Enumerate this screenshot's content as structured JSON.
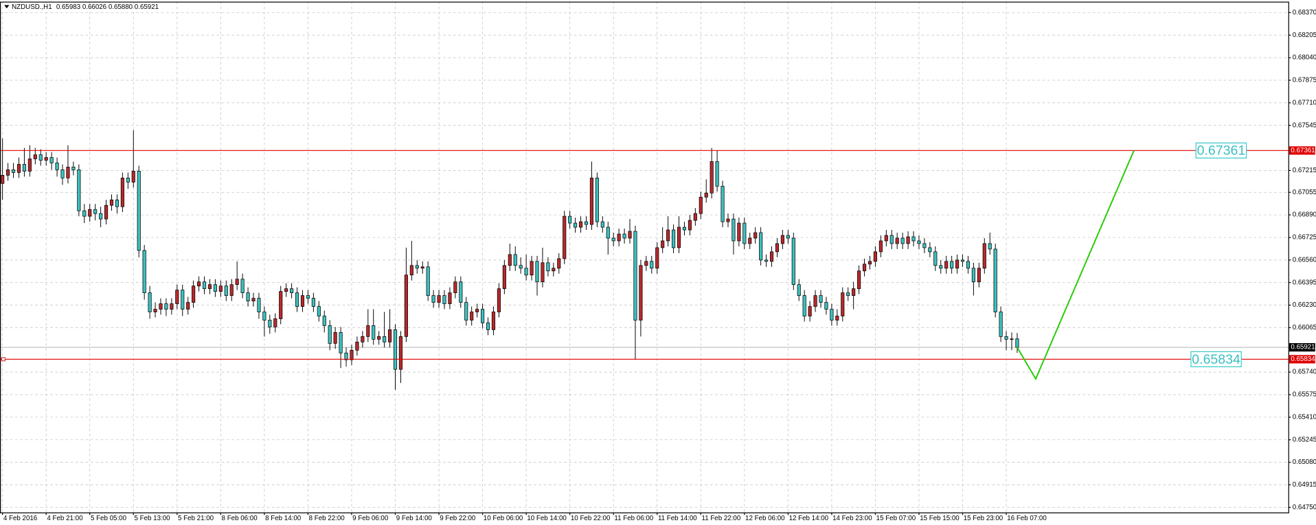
{
  "chart_data": {
    "type": "candlestick",
    "title": "NZDUSD.,H1",
    "quote": "0.65983 0.66026 0.65880 0.65921",
    "up_color": "#b8292c",
    "down_color": "#3cc0bf",
    "wick_color": "#000000",
    "grid": true,
    "xlim": [
      -0.46,
      235.7
    ],
    "ylim": [
      0.64713,
      0.6845
    ],
    "yticks": [
      {
        "value": 0.6837,
        "label": "0.68370"
      },
      {
        "value": 0.68205,
        "label": "0.68205"
      },
      {
        "value": 0.6804,
        "label": "0.68040"
      },
      {
        "value": 0.67875,
        "label": "0.67875"
      },
      {
        "value": 0.6771,
        "label": "0.67710"
      },
      {
        "value": 0.67545,
        "label": "0.67545"
      },
      {
        "value": 0.67215,
        "label": "0.67215"
      },
      {
        "value": 0.67055,
        "label": "0.67055"
      },
      {
        "value": 0.6689,
        "label": "0.66890"
      },
      {
        "value": 0.66725,
        "label": "0.66725"
      },
      {
        "value": 0.6656,
        "label": "0.66560"
      },
      {
        "value": 0.66395,
        "label": "0.66395"
      },
      {
        "value": 0.6623,
        "label": "0.66230"
      },
      {
        "value": 0.66065,
        "label": "0.66065"
      },
      {
        "value": 0.6574,
        "label": "0.65740"
      },
      {
        "value": 0.65575,
        "label": "0.65575"
      },
      {
        "value": 0.6541,
        "label": "0.65410"
      },
      {
        "value": 0.65245,
        "label": "0.65245"
      },
      {
        "value": 0.6508,
        "label": "0.65080"
      },
      {
        "value": 0.64915,
        "label": "0.64915"
      },
      {
        "value": 0.6475,
        "label": "0.64750"
      }
    ],
    "xticks": [
      {
        "value": 0,
        "label": "4 Feb 2016"
      },
      {
        "value": 8,
        "label": "4 Feb 21:00"
      },
      {
        "value": 16,
        "label": "5 Feb 05:00"
      },
      {
        "value": 24,
        "label": "5 Feb 13:00"
      },
      {
        "value": 32,
        "label": "5 Feb 21:00"
      },
      {
        "value": 40,
        "label": "8 Feb 06:00"
      },
      {
        "value": 48,
        "label": "8 Feb 14:00"
      },
      {
        "value": 56,
        "label": "8 Feb 22:00"
      },
      {
        "value": 64,
        "label": "9 Feb 06:00"
      },
      {
        "value": 72,
        "label": "9 Feb 14:00"
      },
      {
        "value": 80,
        "label": "9 Feb 22:00"
      },
      {
        "value": 88,
        "label": "10 Feb 06:00"
      },
      {
        "value": 96,
        "label": "10 Feb 14:00"
      },
      {
        "value": 104,
        "label": "10 Feb 22:00"
      },
      {
        "value": 112,
        "label": "11 Feb 06:00"
      },
      {
        "value": 120,
        "label": "11 Feb 14:00"
      },
      {
        "value": 128,
        "label": "11 Feb 22:00"
      },
      {
        "value": 136,
        "label": "12 Feb 06:00"
      },
      {
        "value": 144,
        "label": "12 Feb 14:00"
      },
      {
        "value": 152,
        "label": "14 Feb 23:00"
      },
      {
        "value": 160,
        "label": "15 Feb 07:00"
      },
      {
        "value": 168,
        "label": "15 Feb 15:00"
      },
      {
        "value": 176,
        "label": "15 Feb 23:00"
      },
      {
        "value": 184,
        "label": "16 Feb 07:00"
      }
    ],
    "levels": [
      {
        "value": 0.67361,
        "color": "#e00000"
      },
      {
        "value": 0.65834,
        "color": "#e00000"
      }
    ],
    "bid": {
      "value": 0.65921,
      "color": "#b0b0b0"
    },
    "projection": {
      "color": "#22cc00",
      "x": [
        186,
        189.4,
        207.4
      ],
      "values": [
        0.65921,
        0.6569,
        0.67361
      ]
    },
    "candles": [
      [
        0.6712,
        0.6745,
        0.67,
        0.6718
      ],
      [
        0.6718,
        0.6727,
        0.6714,
        0.6722
      ],
      [
        0.6722,
        0.6727,
        0.6716,
        0.672
      ],
      [
        0.672,
        0.6731,
        0.6716,
        0.6726
      ],
      [
        0.6726,
        0.6738,
        0.6717,
        0.6721
      ],
      [
        0.6721,
        0.674,
        0.6717,
        0.673
      ],
      [
        0.673,
        0.6738,
        0.6726,
        0.6733
      ],
      [
        0.6733,
        0.6737,
        0.6725,
        0.6729
      ],
      [
        0.6729,
        0.6735,
        0.6725,
        0.6731
      ],
      [
        0.6731,
        0.6735,
        0.6722,
        0.6727
      ],
      [
        0.6727,
        0.6731,
        0.6717,
        0.6722
      ],
      [
        0.6722,
        0.6726,
        0.6711,
        0.6716
      ],
      [
        0.6716,
        0.674,
        0.6712,
        0.6724
      ],
      [
        0.6724,
        0.6728,
        0.6718,
        0.6722
      ],
      [
        0.6722,
        0.6726,
        0.6688,
        0.6692
      ],
      [
        0.6692,
        0.6697,
        0.6683,
        0.6688
      ],
      [
        0.6688,
        0.6697,
        0.6684,
        0.6693
      ],
      [
        0.6693,
        0.6697,
        0.6685,
        0.669
      ],
      [
        0.669,
        0.6695,
        0.668,
        0.6686
      ],
      [
        0.6686,
        0.67,
        0.6682,
        0.6696
      ],
      [
        0.6696,
        0.6704,
        0.6692,
        0.67
      ],
      [
        0.67,
        0.6704,
        0.669,
        0.6695
      ],
      [
        0.6695,
        0.672,
        0.6691,
        0.6716
      ],
      [
        0.6716,
        0.672,
        0.6708,
        0.6713
      ],
      [
        0.6713,
        0.6751,
        0.6709,
        0.6721
      ],
      [
        0.6721,
        0.6725,
        0.6658,
        0.6663
      ],
      [
        0.6663,
        0.6667,
        0.6627,
        0.6632
      ],
      [
        0.6632,
        0.6637,
        0.6613,
        0.6618
      ],
      [
        0.6618,
        0.6625,
        0.6614,
        0.662
      ],
      [
        0.662,
        0.6628,
        0.6616,
        0.6624
      ],
      [
        0.6624,
        0.6628,
        0.6615,
        0.662
      ],
      [
        0.662,
        0.6628,
        0.6616,
        0.6624
      ],
      [
        0.6624,
        0.6638,
        0.662,
        0.6634
      ],
      [
        0.6634,
        0.6638,
        0.6615,
        0.662
      ],
      [
        0.662,
        0.6629,
        0.6616,
        0.6625
      ],
      [
        0.6625,
        0.6641,
        0.6621,
        0.6637
      ],
      [
        0.6637,
        0.6644,
        0.6633,
        0.664
      ],
      [
        0.664,
        0.6644,
        0.6631,
        0.6635
      ],
      [
        0.6635,
        0.6642,
        0.6631,
        0.6638
      ],
      [
        0.6638,
        0.6642,
        0.6629,
        0.6633
      ],
      [
        0.6633,
        0.6641,
        0.6629,
        0.6637
      ],
      [
        0.6637,
        0.6641,
        0.6626,
        0.663
      ],
      [
        0.663,
        0.6642,
        0.6626,
        0.6638
      ],
      [
        0.6638,
        0.6655,
        0.6634,
        0.6642
      ],
      [
        0.6642,
        0.6646,
        0.6628,
        0.6632
      ],
      [
        0.6632,
        0.6636,
        0.6622,
        0.6626
      ],
      [
        0.6626,
        0.6632,
        0.6622,
        0.6628
      ],
      [
        0.6628,
        0.6632,
        0.6613,
        0.6618
      ],
      [
        0.6618,
        0.6622,
        0.66,
        0.6612
      ],
      [
        0.6612,
        0.6616,
        0.6602,
        0.6607
      ],
      [
        0.6607,
        0.6617,
        0.6603,
        0.6613
      ],
      [
        0.6613,
        0.6637,
        0.6609,
        0.6633
      ],
      [
        0.6633,
        0.6639,
        0.6629,
        0.6635
      ],
      [
        0.6635,
        0.6639,
        0.6628,
        0.6632
      ],
      [
        0.6632,
        0.6636,
        0.6618,
        0.6622
      ],
      [
        0.6622,
        0.6634,
        0.6618,
        0.663
      ],
      [
        0.663,
        0.6634,
        0.6624,
        0.6628
      ],
      [
        0.6628,
        0.6632,
        0.6618,
        0.6622
      ],
      [
        0.6622,
        0.6626,
        0.6611,
        0.6615
      ],
      [
        0.6615,
        0.6619,
        0.6603,
        0.6608
      ],
      [
        0.6608,
        0.6612,
        0.659,
        0.6595
      ],
      [
        0.6595,
        0.6607,
        0.6591,
        0.6603
      ],
      [
        0.6603,
        0.6607,
        0.6577,
        0.6588
      ],
      [
        0.6588,
        0.6592,
        0.6578,
        0.6583
      ],
      [
        0.6583,
        0.6594,
        0.6579,
        0.659
      ],
      [
        0.659,
        0.66,
        0.6586,
        0.6596
      ],
      [
        0.6596,
        0.6604,
        0.6592,
        0.66
      ],
      [
        0.66,
        0.662,
        0.6596,
        0.6608
      ],
      [
        0.6608,
        0.662,
        0.6594,
        0.6598
      ],
      [
        0.6598,
        0.6604,
        0.6594,
        0.66
      ],
      [
        0.66,
        0.6618,
        0.6592,
        0.6596
      ],
      [
        0.6596,
        0.662,
        0.6592,
        0.6605
      ],
      [
        0.6605,
        0.6609,
        0.6561,
        0.6576
      ],
      [
        0.6576,
        0.6604,
        0.6566,
        0.66
      ],
      [
        0.66,
        0.6665,
        0.6596,
        0.6645
      ],
      [
        0.6645,
        0.667,
        0.6641,
        0.6652
      ],
      [
        0.6652,
        0.6656,
        0.6646,
        0.665
      ],
      [
        0.665,
        0.6655,
        0.6646,
        0.6651
      ],
      [
        0.6651,
        0.6655,
        0.6626,
        0.663
      ],
      [
        0.663,
        0.6634,
        0.6621,
        0.6625
      ],
      [
        0.6625,
        0.6634,
        0.6621,
        0.663
      ],
      [
        0.663,
        0.6634,
        0.662,
        0.6624
      ],
      [
        0.6624,
        0.6636,
        0.662,
        0.6632
      ],
      [
        0.6632,
        0.6644,
        0.6628,
        0.664
      ],
      [
        0.664,
        0.6644,
        0.6621,
        0.6625
      ],
      [
        0.6625,
        0.6629,
        0.6608,
        0.6612
      ],
      [
        0.6612,
        0.6622,
        0.6608,
        0.6618
      ],
      [
        0.6618,
        0.6624,
        0.6614,
        0.662
      ],
      [
        0.662,
        0.6624,
        0.6606,
        0.661
      ],
      [
        0.661,
        0.6614,
        0.6601,
        0.6605
      ],
      [
        0.6605,
        0.6622,
        0.6601,
        0.6618
      ],
      [
        0.6618,
        0.6639,
        0.6614,
        0.6635
      ],
      [
        0.6635,
        0.6656,
        0.6631,
        0.6652
      ],
      [
        0.6652,
        0.6668,
        0.6648,
        0.666
      ],
      [
        0.666,
        0.6666,
        0.6648,
        0.6652
      ],
      [
        0.6652,
        0.6658,
        0.6646,
        0.665
      ],
      [
        0.665,
        0.666,
        0.6641,
        0.6645
      ],
      [
        0.6645,
        0.6659,
        0.6641,
        0.6655
      ],
      [
        0.6655,
        0.6659,
        0.663,
        0.664
      ],
      [
        0.664,
        0.6665,
        0.6636,
        0.6654
      ],
      [
        0.6654,
        0.6658,
        0.6644,
        0.6648
      ],
      [
        0.6648,
        0.6654,
        0.6644,
        0.665
      ],
      [
        0.665,
        0.6661,
        0.6646,
        0.6657
      ],
      [
        0.6657,
        0.6692,
        0.6653,
        0.6688
      ],
      [
        0.6688,
        0.6692,
        0.6679,
        0.6683
      ],
      [
        0.6683,
        0.6687,
        0.6676,
        0.668
      ],
      [
        0.668,
        0.6688,
        0.6676,
        0.6684
      ],
      [
        0.6684,
        0.6688,
        0.6678,
        0.6682
      ],
      [
        0.6682,
        0.6728,
        0.6678,
        0.6716
      ],
      [
        0.6716,
        0.672,
        0.668,
        0.6684
      ],
      [
        0.6684,
        0.6688,
        0.6676,
        0.668
      ],
      [
        0.668,
        0.6684,
        0.666,
        0.6672
      ],
      [
        0.6672,
        0.6676,
        0.6666,
        0.667
      ],
      [
        0.667,
        0.6679,
        0.6666,
        0.6675
      ],
      [
        0.6675,
        0.6679,
        0.6668,
        0.6672
      ],
      [
        0.6672,
        0.6686,
        0.6668,
        0.6677
      ],
      [
        0.6677,
        0.6681,
        0.6583,
        0.6612
      ],
      [
        0.6612,
        0.6656,
        0.66,
        0.6652
      ],
      [
        0.6652,
        0.6659,
        0.6648,
        0.6655
      ],
      [
        0.6655,
        0.6659,
        0.6646,
        0.665
      ],
      [
        0.665,
        0.6669,
        0.6646,
        0.6665
      ],
      [
        0.6665,
        0.668,
        0.6661,
        0.667
      ],
      [
        0.667,
        0.6688,
        0.6666,
        0.6678
      ],
      [
        0.6678,
        0.6682,
        0.6661,
        0.6665
      ],
      [
        0.6665,
        0.6688,
        0.6661,
        0.668
      ],
      [
        0.668,
        0.6684,
        0.6674,
        0.6678
      ],
      [
        0.6678,
        0.6689,
        0.6674,
        0.6685
      ],
      [
        0.6685,
        0.6694,
        0.6681,
        0.669
      ],
      [
        0.669,
        0.6706,
        0.6686,
        0.6702
      ],
      [
        0.6702,
        0.6715,
        0.6698,
        0.6705
      ],
      [
        0.6705,
        0.6738,
        0.6701,
        0.6728
      ],
      [
        0.6728,
        0.6736,
        0.6706,
        0.671
      ],
      [
        0.671,
        0.6714,
        0.668,
        0.6684
      ],
      [
        0.6684,
        0.669,
        0.668,
        0.6686
      ],
      [
        0.6686,
        0.669,
        0.666,
        0.667
      ],
      [
        0.667,
        0.6687,
        0.6666,
        0.6683
      ],
      [
        0.6683,
        0.6687,
        0.6664,
        0.6668
      ],
      [
        0.6668,
        0.6676,
        0.6664,
        0.6672
      ],
      [
        0.6672,
        0.668,
        0.6668,
        0.6676
      ],
      [
        0.6676,
        0.668,
        0.6652,
        0.6656
      ],
      [
        0.6656,
        0.666,
        0.6651,
        0.6655
      ],
      [
        0.6655,
        0.6666,
        0.6651,
        0.6662
      ],
      [
        0.6662,
        0.6672,
        0.6658,
        0.6668
      ],
      [
        0.6668,
        0.6678,
        0.6664,
        0.6674
      ],
      [
        0.6674,
        0.6678,
        0.6668,
        0.6672
      ],
      [
        0.6672,
        0.6676,
        0.6634,
        0.6638
      ],
      [
        0.6638,
        0.6642,
        0.6626,
        0.663
      ],
      [
        0.663,
        0.6634,
        0.6611,
        0.6615
      ],
      [
        0.6615,
        0.6626,
        0.6611,
        0.6622
      ],
      [
        0.6622,
        0.6634,
        0.6618,
        0.663
      ],
      [
        0.663,
        0.6634,
        0.6621,
        0.6625
      ],
      [
        0.6625,
        0.6629,
        0.6616,
        0.662
      ],
      [
        0.662,
        0.6624,
        0.6608,
        0.6612
      ],
      [
        0.6612,
        0.662,
        0.6608,
        0.6615
      ],
      [
        0.6615,
        0.6636,
        0.6611,
        0.6632
      ],
      [
        0.6632,
        0.6636,
        0.6626,
        0.663
      ],
      [
        0.663,
        0.664,
        0.662,
        0.6635
      ],
      [
        0.6635,
        0.6652,
        0.6631,
        0.6648
      ],
      [
        0.6648,
        0.6657,
        0.6644,
        0.6653
      ],
      [
        0.6653,
        0.6659,
        0.6649,
        0.6655
      ],
      [
        0.6655,
        0.6666,
        0.6651,
        0.6662
      ],
      [
        0.6662,
        0.6674,
        0.6658,
        0.667
      ],
      [
        0.667,
        0.6678,
        0.6666,
        0.6674
      ],
      [
        0.6674,
        0.6678,
        0.6664,
        0.6668
      ],
      [
        0.6668,
        0.6676,
        0.6664,
        0.6672
      ],
      [
        0.6672,
        0.6676,
        0.6664,
        0.6668
      ],
      [
        0.6668,
        0.6677,
        0.6664,
        0.6673
      ],
      [
        0.6673,
        0.6677,
        0.6666,
        0.667
      ],
      [
        0.667,
        0.6674,
        0.6664,
        0.6668
      ],
      [
        0.6668,
        0.6672,
        0.6661,
        0.6665
      ],
      [
        0.6665,
        0.6669,
        0.6658,
        0.6662
      ],
      [
        0.6662,
        0.6666,
        0.6648,
        0.6652
      ],
      [
        0.6652,
        0.6656,
        0.6646,
        0.665
      ],
      [
        0.665,
        0.6659,
        0.6646,
        0.6655
      ],
      [
        0.6655,
        0.6659,
        0.6646,
        0.665
      ],
      [
        0.665,
        0.666,
        0.6646,
        0.6656
      ],
      [
        0.6656,
        0.666,
        0.6651,
        0.6655
      ],
      [
        0.6655,
        0.6659,
        0.6646,
        0.665
      ],
      [
        0.665,
        0.6654,
        0.663,
        0.664
      ],
      [
        0.664,
        0.6654,
        0.6636,
        0.665
      ],
      [
        0.665,
        0.6672,
        0.6646,
        0.6668
      ],
      [
        0.6668,
        0.6676,
        0.666,
        0.6664
      ],
      [
        0.6664,
        0.6668,
        0.6614,
        0.6618
      ],
      [
        0.6618,
        0.6622,
        0.6596,
        0.66
      ],
      [
        0.66,
        0.6604,
        0.659,
        0.6598
      ],
      [
        0.6598,
        0.6603,
        0.659,
        0.65983
      ],
      [
        0.65983,
        0.66026,
        0.6588,
        0.65921
      ]
    ]
  }
}
